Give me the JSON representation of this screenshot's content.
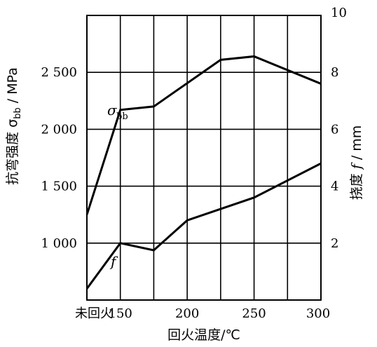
{
  "chart_data": {
    "type": "line",
    "x_axis": {
      "label": "回火温度/℃",
      "categories": [
        "未回火",
        "150",
        "175",
        "200",
        "225",
        "250",
        "275",
        "300"
      ],
      "tick_labels": [
        "未回火",
        "150",
        "200",
        "250",
        "300"
      ]
    },
    "y_left": {
      "label": "抗弯强度 σbb / MPa",
      "range": [
        500,
        3000
      ],
      "ticks": [
        1000,
        1500,
        2000,
        2500
      ],
      "tick_labels": [
        "1 000",
        "1 500",
        "2 000",
        "2 500"
      ]
    },
    "y_right": {
      "label": "挠度 f / mm",
      "range": [
        0,
        10
      ],
      "ticks": [
        2,
        4,
        6,
        8,
        10
      ],
      "tick_labels": [
        "2",
        "4",
        "6",
        "8",
        "10"
      ]
    },
    "series": [
      {
        "name": "σbb",
        "axis": "left",
        "x": [
          "未回火",
          "150",
          "175",
          "200",
          "225",
          "250",
          "300"
        ],
        "values": [
          1250,
          2170,
          2200,
          null,
          2610,
          2640,
          2400
        ]
      },
      {
        "name": "f",
        "axis": "right",
        "x": [
          "未回火",
          "150",
          "175",
          "200",
          "250",
          "300"
        ],
        "values": [
          0.4,
          2.0,
          1.75,
          2.8,
          3.6,
          4.8
        ]
      }
    ],
    "grid": true
  }
}
